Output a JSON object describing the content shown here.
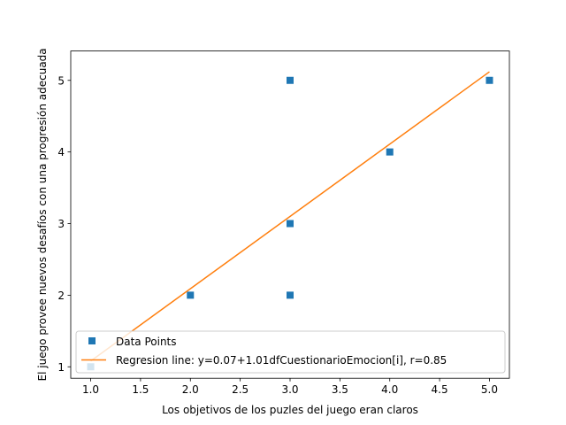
{
  "chart_data": {
    "type": "scatter",
    "xlabel": "Los objetivos de los puzles del juego eran claros",
    "ylabel": "El juego provee nuevos desafíos con una progresión adecuada",
    "xlim": [
      0.8,
      5.2
    ],
    "ylim": [
      0.84,
      5.41
    ],
    "xticks": [
      1.0,
      1.5,
      2.0,
      2.5,
      3.0,
      3.5,
      4.0,
      4.5,
      5.0
    ],
    "xtick_labels": [
      "1.0",
      "1.5",
      "2.0",
      "2.5",
      "3.0",
      "3.5",
      "4.0",
      "4.5",
      "5.0"
    ],
    "yticks": [
      1,
      2,
      3,
      4,
      5
    ],
    "ytick_labels": [
      "1",
      "2",
      "3",
      "4",
      "5"
    ],
    "grid": false,
    "legend_position": "lower-right",
    "series": [
      {
        "name": "Data Points",
        "kind": "scatter",
        "marker": "square",
        "color": "#1f77b4",
        "x": [
          1,
          2,
          3,
          3,
          3,
          4,
          5
        ],
        "y": [
          1,
          2,
          5,
          3,
          2,
          4,
          5
        ]
      },
      {
        "name": "Regresion line: y=0.07+1.01dfCuestionarioEmocion[i], r=0.85",
        "kind": "line",
        "color": "#ff7f0e",
        "intercept": 0.07,
        "slope": 1.01,
        "x": [
          1,
          2,
          3,
          3,
          3,
          4,
          5
        ]
      }
    ]
  }
}
